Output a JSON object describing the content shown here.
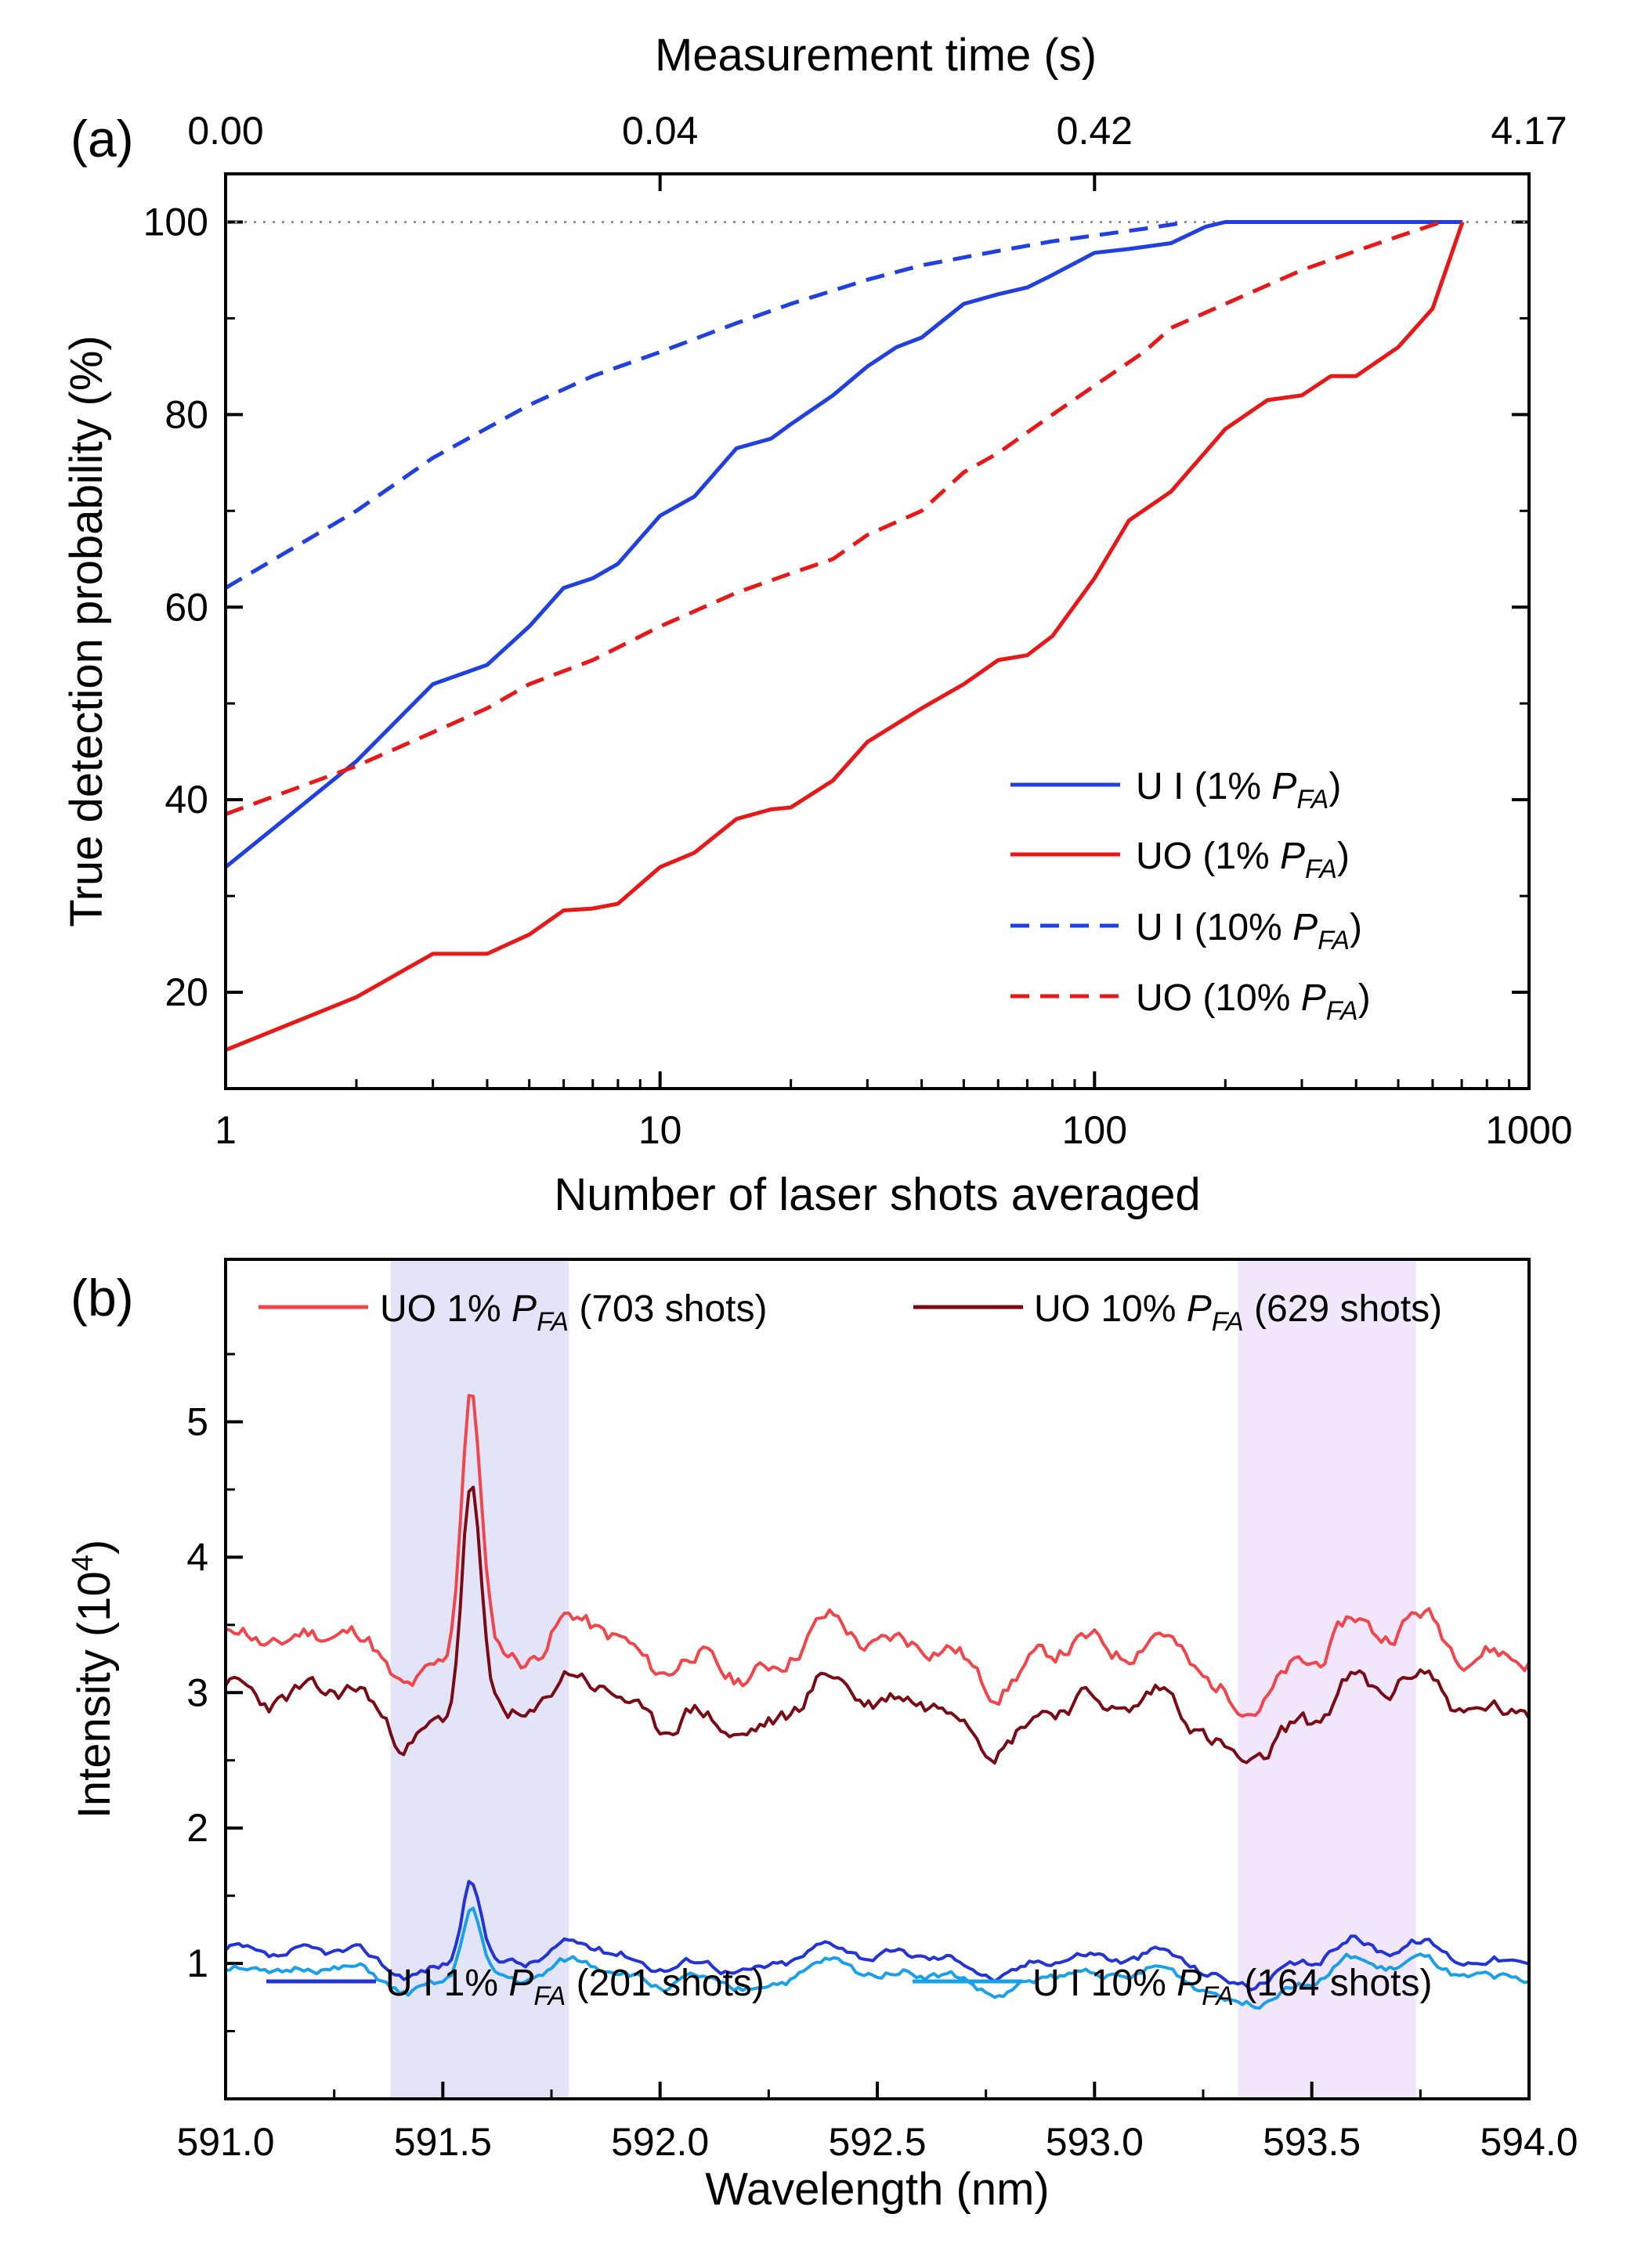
{
  "chart_data": [
    {
      "panel": "(a)",
      "type": "line",
      "xscale": "log",
      "xlim": [
        1,
        1000
      ],
      "ylim": [
        10,
        105
      ],
      "xlabel": "Number of laser shots averaged",
      "ylabel": "True detection probability (%)",
      "top_xlabel": "Measurement time (s)",
      "x_ticks": [
        "1",
        "10",
        "100",
        "1000"
      ],
      "x_tick_values": [
        1,
        10,
        100,
        1000
      ],
      "y_ticks": [
        "20",
        "40",
        "60",
        "80",
        "100"
      ],
      "y_tick_values": [
        20,
        40,
        60,
        80,
        100
      ],
      "top_ticks": [
        "0.00",
        "0.04",
        "0.42",
        "4.17"
      ],
      "top_tick_values": [
        1,
        10,
        100,
        1000
      ],
      "reference_line": 100,
      "series": [
        {
          "name": "U I (1% P_FA)",
          "legend_prefix": "U I (1% ",
          "legend_suffix": ")",
          "color": "#2040e0",
          "dash": "solid",
          "x": [
            1,
            2,
            3,
            4,
            5,
            6,
            7,
            8,
            10,
            12,
            15,
            18,
            20,
            25,
            30,
            35,
            40,
            50,
            60,
            70,
            80,
            100,
            120,
            150,
            180,
            200,
            300,
            500,
            703
          ],
          "values": [
            33,
            44,
            52,
            54,
            58,
            62,
            63,
            64.5,
            69.5,
            71.5,
            76.5,
            77.5,
            79,
            82,
            85,
            87,
            88,
            91.5,
            92.5,
            93.2,
            94.5,
            96.8,
            97.2,
            97.8,
            99.5,
            100,
            100,
            100,
            100
          ]
        },
        {
          "name": "UO (1% P_FA)",
          "legend_prefix": "UO (1% ",
          "legend_suffix": ")",
          "color": "#e81818",
          "dash": "solid",
          "x": [
            1,
            2,
            3,
            4,
            5,
            6,
            7,
            8,
            10,
            12,
            15,
            18,
            20,
            25,
            30,
            40,
            50,
            60,
            70,
            80,
            100,
            120,
            150,
            200,
            250,
            300,
            350,
            400,
            500,
            600,
            703
          ],
          "values": [
            14,
            19.5,
            24,
            24,
            26,
            28.5,
            28.7,
            29.2,
            33,
            34.5,
            38,
            39,
            39.2,
            42,
            46,
            49.5,
            52,
            54.5,
            55,
            57,
            63,
            69,
            72,
            78.5,
            81.5,
            82,
            84,
            84,
            87,
            91,
            100
          ]
        },
        {
          "name": "U I (10% P_FA)",
          "legend_prefix": "U I (10% ",
          "legend_suffix": ")",
          "color": "#2040e0",
          "dash": "dashed",
          "x": [
            1,
            2,
            3,
            5,
            7,
            10,
            15,
            20,
            30,
            40,
            60,
            80,
            100,
            130,
            164
          ],
          "values": [
            62,
            70,
            75.5,
            81,
            84,
            86.5,
            89.5,
            91.5,
            94,
            95.5,
            97,
            98,
            98.6,
            99.3,
            100
          ]
        },
        {
          "name": "UO (10% P_FA)",
          "legend_prefix": "UO (10% ",
          "legend_suffix": ")",
          "color": "#e81818",
          "dash": "dashed",
          "x": [
            1,
            2,
            3,
            4,
            5,
            7,
            10,
            15,
            20,
            25,
            30,
            40,
            50,
            60,
            80,
            100,
            130,
            150,
            200,
            300,
            400,
            500,
            629
          ],
          "values": [
            38.5,
            43.5,
            47,
            49.5,
            52,
            54.5,
            58,
            61.5,
            63.5,
            65,
            67.5,
            70,
            74,
            76,
            80,
            83,
            86.5,
            89,
            91.5,
            95,
            97,
            98.5,
            100
          ]
        }
      ]
    },
    {
      "panel": "(b)",
      "type": "line",
      "xlim": [
        591.0,
        594.0
      ],
      "ylim": [
        0,
        6.2
      ],
      "xlabel": "Wavelength (nm)",
      "ylabel": "Intensity (10",
      "ylabel_exp": "4",
      "ylabel_end": ")",
      "x_ticks": [
        "591.0",
        "591.5",
        "592.0",
        "592.5",
        "593.0",
        "593.5",
        "594.0"
      ],
      "x_tick_values": [
        591.0,
        591.5,
        592.0,
        592.5,
        593.0,
        593.5,
        594.0
      ],
      "y_ticks": [
        "1",
        "2",
        "3",
        "4",
        "5"
      ],
      "y_tick_values": [
        1,
        2,
        3,
        4,
        5
      ],
      "highlight_bands": [
        {
          "from": 591.38,
          "to": 591.79,
          "color": "#e4e4f8"
        },
        {
          "from": 593.33,
          "to": 593.74,
          "color": "#f2e6fa"
        }
      ],
      "series": [
        {
          "name": "UO 1% P_FA (703 shots)",
          "legend_prefix": "UO 1% ",
          "legend_suffix": " (703 shots)",
          "color": "#f0454a",
          "baseline": 3.3,
          "noise": 0.17,
          "seed": 11,
          "peaks": [
            {
              "center": 591.565,
              "height": 2.0,
              "width": 0.032
            },
            {
              "center": 593.58,
              "height": 0.33,
              "width": 0.06
            }
          ]
        },
        {
          "name": "UO 10% P_FA (629 shots)",
          "legend_prefix": "UO 10% ",
          "legend_suffix": " (629 shots)",
          "color": "#7a0a14",
          "baseline": 2.88,
          "noise": 0.17,
          "seed": 23,
          "peaks": [
            {
              "center": 591.565,
              "height": 1.75,
              "width": 0.03
            },
            {
              "center": 593.58,
              "height": 0.3,
              "width": 0.06
            }
          ]
        },
        {
          "name": "U I 1% P_FA (201 shots)",
          "legend_prefix": "U I 1% ",
          "legend_suffix": " (201 shots)",
          "color": "#2233d8",
          "baseline": 1.03,
          "noise": 0.08,
          "seed": 37,
          "peaks": [
            {
              "center": 591.565,
              "height": 0.6,
              "width": 0.03
            },
            {
              "center": 593.58,
              "height": 0.2,
              "width": 0.06
            }
          ]
        },
        {
          "name": "U I 10% P_FA (164 shots)",
          "legend_prefix": "U I 10% ",
          "legend_suffix": " (164 shots)",
          "color": "#1aa0e8",
          "baseline": 0.9,
          "noise": 0.08,
          "seed": 51,
          "peaks": [
            {
              "center": 591.565,
              "height": 0.55,
              "width": 0.03
            },
            {
              "center": 593.58,
              "height": 0.18,
              "width": 0.06
            }
          ]
        }
      ]
    }
  ],
  "pfa_symbol": "P",
  "pfa_subscript": "FA"
}
